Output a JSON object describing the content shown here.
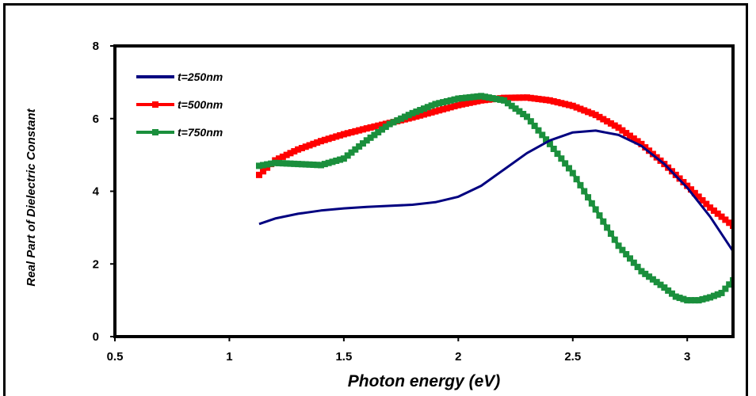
{
  "chart_data": {
    "type": "line",
    "xlabel": "Photon energy (eV)",
    "ylabel": "Real Part of Dielectric Constant",
    "xlim": [
      0.5,
      3.2
    ],
    "ylim": [
      0,
      8
    ],
    "xticks": [
      "0.5",
      "1",
      "1.5",
      "2",
      "2.5",
      "3"
    ],
    "yticks": [
      "0",
      "2",
      "4",
      "6",
      "8"
    ],
    "grid": false,
    "legend_position": "top-left",
    "series": [
      {
        "name": "t=250nm",
        "color": "#000080",
        "marker": "none",
        "x": [
          1.13,
          1.2,
          1.3,
          1.4,
          1.5,
          1.6,
          1.7,
          1.8,
          1.9,
          2.0,
          2.1,
          2.2,
          2.3,
          2.4,
          2.5,
          2.6,
          2.7,
          2.8,
          2.9,
          3.0,
          3.1,
          3.2
        ],
        "y": [
          3.1,
          3.25,
          3.38,
          3.47,
          3.53,
          3.57,
          3.6,
          3.63,
          3.7,
          3.85,
          4.15,
          4.6,
          5.05,
          5.4,
          5.62,
          5.67,
          5.55,
          5.25,
          4.75,
          4.1,
          3.3,
          2.35
        ]
      },
      {
        "name": "t=500nm",
        "color": "#ff0000",
        "marker": "square",
        "x": [
          1.13,
          1.2,
          1.3,
          1.4,
          1.5,
          1.6,
          1.7,
          1.8,
          1.9,
          2.0,
          2.1,
          2.2,
          2.3,
          2.4,
          2.5,
          2.6,
          2.7,
          2.8,
          2.9,
          3.0,
          3.1,
          3.2
        ],
        "y": [
          4.45,
          4.85,
          5.15,
          5.38,
          5.57,
          5.73,
          5.88,
          6.03,
          6.2,
          6.37,
          6.5,
          6.57,
          6.58,
          6.5,
          6.35,
          6.1,
          5.75,
          5.3,
          4.75,
          4.15,
          3.55,
          3.05
        ]
      },
      {
        "name": "t=750nm",
        "color": "#1a8f3c",
        "marker": "square",
        "x": [
          1.13,
          1.2,
          1.3,
          1.4,
          1.5,
          1.6,
          1.7,
          1.8,
          1.9,
          2.0,
          2.1,
          2.2,
          2.3,
          2.4,
          2.5,
          2.6,
          2.7,
          2.8,
          2.9,
          2.95,
          3.0,
          3.05,
          3.1,
          3.15,
          3.2
        ],
        "y": [
          4.7,
          4.78,
          4.75,
          4.72,
          4.9,
          5.4,
          5.85,
          6.15,
          6.4,
          6.55,
          6.62,
          6.5,
          6.05,
          5.3,
          4.5,
          3.5,
          2.5,
          1.8,
          1.35,
          1.1,
          1.0,
          1.0,
          1.08,
          1.2,
          1.55
        ]
      }
    ]
  }
}
